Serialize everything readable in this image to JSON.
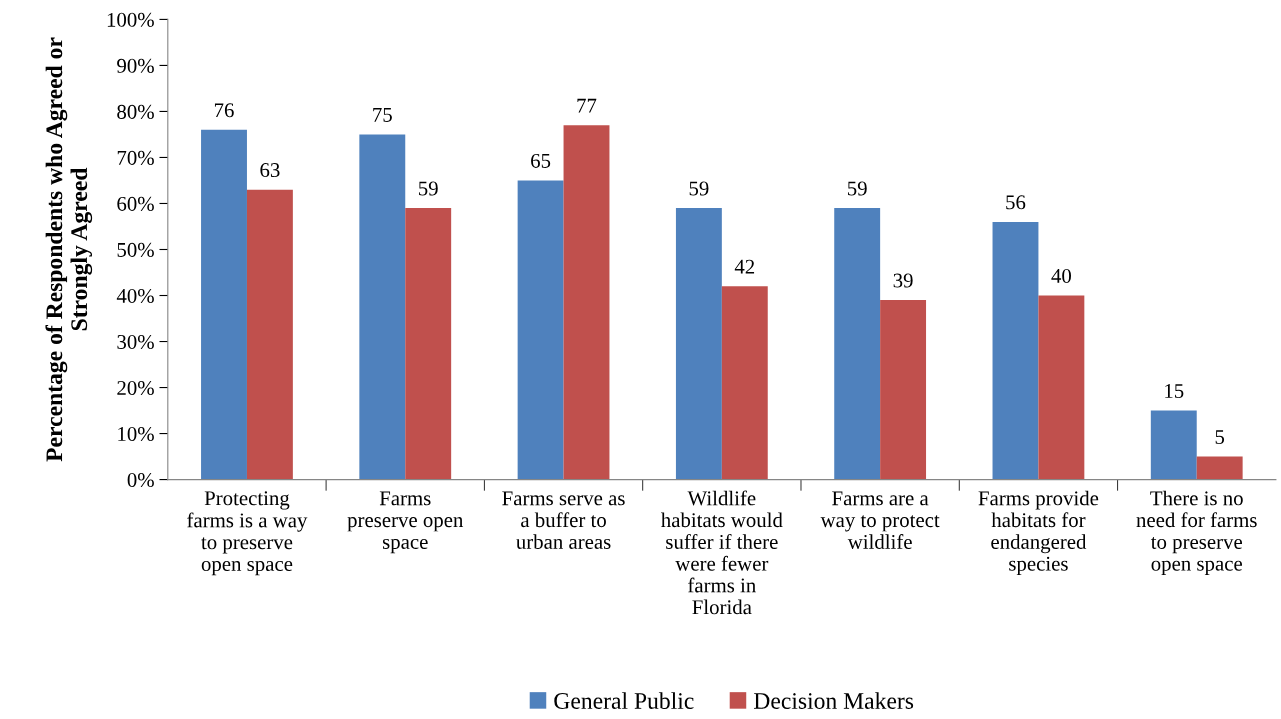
{
  "chart_data": {
    "type": "bar",
    "categories": [
      "Protecting\nfarms is a way\nto preserve\nopen space",
      "Farms\npreserve open\nspace",
      "Farms serve as\na buffer to\nurban areas",
      "Wildlife\nhabitats would\nsuffer if there\nwere fewer\nfarms in\nFlorida",
      "Farms are a\nway to protect\nwildlife",
      "Farms provide\nhabitats for\nendangered\nspecies",
      "There is no\nneed for farms\nto preserve\nopen space"
    ],
    "series": [
      {
        "name": "General Public",
        "color": "#4f81bd",
        "values": [
          76,
          75,
          65,
          59,
          59,
          56,
          15
        ]
      },
      {
        "name": "Decision Makers",
        "color": "#c0504d",
        "values": [
          63,
          59,
          77,
          42,
          39,
          40,
          5
        ]
      }
    ],
    "ylabel": "Percentage of Respondents who Agreed or\nStrongly Agreed",
    "ylim": [
      0,
      100
    ],
    "yticks": [
      {
        "value": 0,
        "label": "0%"
      },
      {
        "value": 10,
        "label": "10%"
      },
      {
        "value": 20,
        "label": "20%"
      },
      {
        "value": 30,
        "label": "30%"
      },
      {
        "value": 40,
        "label": "40%"
      },
      {
        "value": 50,
        "label": "50%"
      },
      {
        "value": 60,
        "label": "60%"
      },
      {
        "value": 70,
        "label": "70%"
      },
      {
        "value": 80,
        "label": "80%"
      },
      {
        "value": 90,
        "label": "90%"
      },
      {
        "value": 100,
        "label": "100%"
      }
    ],
    "data_labels": true,
    "grid": false,
    "legend": "bottom"
  }
}
